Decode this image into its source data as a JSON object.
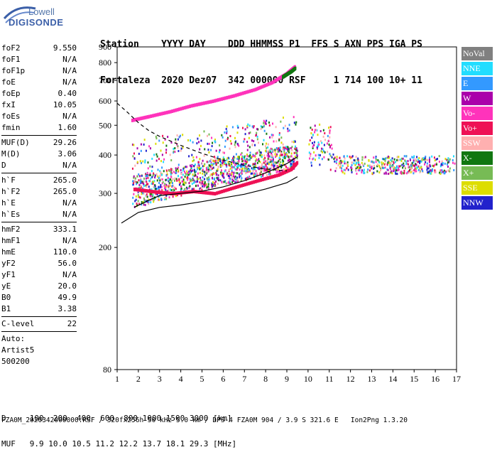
{
  "logo": {
    "top": "Lowell",
    "bottom": "DIGISONDE"
  },
  "header": {
    "row1": "Station    YYYY DAY    DDD HHMMSS P1  FFS S AXN PPS IGA PS",
    "row2": "Fortaleza  2020 Dez07  342 000000 RSF     1 714 100 10+ 11"
  },
  "params": [
    {
      "group": [
        [
          "foF2",
          "9.550"
        ],
        [
          "foF1",
          "N/A"
        ],
        [
          "foF1p",
          "N/A"
        ],
        [
          "foE",
          "N/A"
        ],
        [
          "foEp",
          "0.40"
        ],
        [
          "fxI",
          "10.05"
        ],
        [
          "foEs",
          "N/A"
        ],
        [
          "fmin",
          "1.60"
        ]
      ]
    },
    {
      "group": [
        [
          "MUF(D)",
          "29.26"
        ],
        [
          "M(D)",
          "3.06"
        ],
        [
          "D",
          "N/A"
        ]
      ]
    },
    {
      "group": [
        [
          "h`F",
          "265.0"
        ],
        [
          "h`F2",
          "265.0"
        ],
        [
          "h`E",
          "N/A"
        ],
        [
          "h`Es",
          "N/A"
        ]
      ]
    },
    {
      "group": [
        [
          "hmF2",
          "333.1"
        ],
        [
          "hmF1",
          "N/A"
        ],
        [
          "hmE",
          "110.0"
        ],
        [
          "yF2",
          "56.0"
        ],
        [
          "yF1",
          "N/A"
        ],
        [
          "yE",
          "20.0"
        ],
        [
          "B0",
          "49.9"
        ],
        [
          "B1",
          "3.38"
        ]
      ]
    },
    {
      "group": [
        [
          "C-level",
          "22"
        ]
      ]
    }
  ],
  "auto": {
    "line1": "Auto:",
    "line2": "Artist5",
    "line3": "500200"
  },
  "legend": [
    {
      "label": "NoVal",
      "color": "#808080"
    },
    {
      "label": "NNE",
      "color": "#22ddff"
    },
    {
      "label": "E",
      "color": "#3399ff"
    },
    {
      "label": "W",
      "color": "#aa00aa"
    },
    {
      "label": "Vo-",
      "color": "#ff33bb"
    },
    {
      "label": "Vo+",
      "color": "#ee1155"
    },
    {
      "label": "SSW",
      "color": "#ffb0b0"
    },
    {
      "label": "X-",
      "color": "#117711"
    },
    {
      "label": "X+",
      "color": "#77bb55"
    },
    {
      "label": "SSE",
      "color": "#dddd00"
    },
    {
      "label": "NNW",
      "color": "#2222cc"
    }
  ],
  "bottom": {
    "d_row": "D     100  200  400  600  800 1000 1500 3000 [km]",
    "muf_row": "MUF   9.9 10.0 10.5 11.2 12.2 13.7 18.1 29.3 [MHz]"
  },
  "footer": "FZA0M_2020342000000.RSF / 320fx256h 50 kHz 5.0 km / DPS-4 FZA0M 904 / 3.9 S 321.6 E   Ion2Png 1.3.20",
  "chart_data": {
    "type": "scatter",
    "xlabel": "",
    "ylabel": "",
    "x_ticks": [
      1,
      2,
      3,
      4,
      5,
      6,
      7,
      8,
      9,
      10,
      11,
      12,
      13,
      14,
      15,
      16,
      17
    ],
    "y_ticks": [
      80,
      200,
      300,
      400,
      500,
      600,
      700,
      800,
      900
    ],
    "xlim": [
      1,
      17
    ],
    "ylim_note": "log height scale",
    "ylim": [
      80,
      900
    ],
    "grid": false,
    "series": [
      {
        "color": "#ff33bb",
        "x": [
          1.7,
          2.5,
          3.5,
          4.5,
          5.5,
          6.5,
          7.5,
          8.3,
          9.0,
          9.4
        ],
        "y": [
          520,
          535,
          555,
          580,
          600,
          625,
          655,
          690,
          740,
          780
        ]
      },
      {
        "color": "#ee1155",
        "x": [
          1.8,
          2.6,
          3.6,
          4.6,
          5.6,
          6.6,
          7.6,
          8.6,
          9.2,
          9.5
        ],
        "y": [
          310,
          305,
          300,
          305,
          300,
          315,
          330,
          345,
          360,
          380
        ]
      },
      {
        "color": "#117711",
        "x": [
          8.8,
          9.0,
          9.2,
          9.4
        ],
        "y": [
          720,
          735,
          750,
          770
        ]
      }
    ],
    "lines": [
      {
        "name": "",
        "color": "#000",
        "x": [
          1.2,
          2,
          3,
          4,
          5,
          6,
          7,
          8,
          9,
          9.5
        ],
        "y": [
          240,
          260,
          270,
          275,
          282,
          290,
          298,
          310,
          325,
          340
        ]
      },
      {
        "name": "",
        "color": "#000",
        "x": [
          1.8,
          2.5,
          3,
          4,
          5,
          6,
          7,
          8,
          9,
          9.5
        ],
        "y": [
          270,
          285,
          295,
          300,
          305,
          315,
          330,
          350,
          375,
          395
        ]
      },
      {
        "name": "",
        "dash": true,
        "color": "#000",
        "x": [
          1.0,
          1.5,
          2,
          2.5,
          3,
          4,
          5,
          6,
          7,
          8,
          9
        ],
        "y": [
          590,
          550,
          510,
          480,
          460,
          430,
          405,
          385,
          370,
          360,
          355
        ]
      }
    ]
  }
}
